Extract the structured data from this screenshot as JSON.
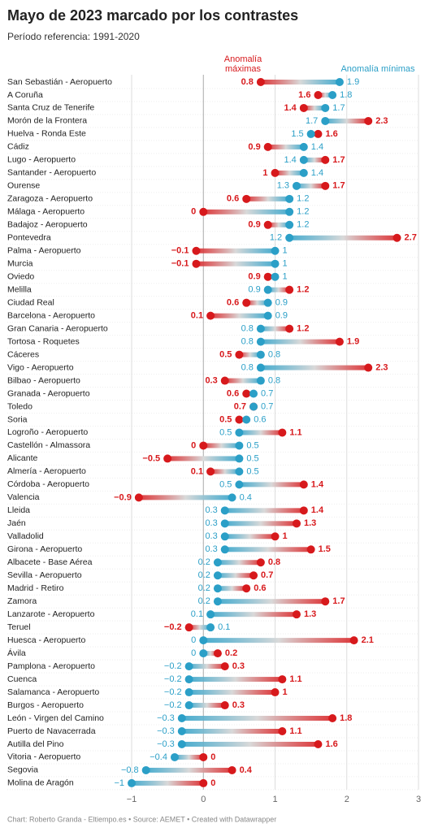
{
  "chart_data": {
    "type": "dumbbell",
    "title": "Mayo de 2023 marcado por los contrastes",
    "subtitle": "Período referencia: 1991-2020",
    "footer": "Chart: Roberto Granda - Eltiempo.es • Source: AEMET • Created with Datawrapper",
    "categories": [
      "San Sebastián - Aeropuerto",
      "A Coruña",
      "Santa Cruz de Tenerife",
      "Morón de la Frontera",
      "Huelva - Ronda Este",
      "Cádiz",
      "Lugo - Aeropuerto",
      "Santander - Aeropuerto",
      "Ourense",
      "Zaragoza - Aeropuerto",
      "Málaga - Aeropuerto",
      "Badajoz - Aeropuerto",
      "Pontevedra",
      "Palma - Aeropuerto",
      "Murcia",
      "Oviedo",
      "Melilla",
      "Ciudad Real",
      "Barcelona - Aeropuerto",
      "Gran Canaria - Aeropuerto",
      "Tortosa - Roquetes",
      "Cáceres",
      "Vigo - Aeropuerto",
      "Bilbao - Aeropuerto",
      "Granada - Aeropuerto",
      "Toledo",
      "Soria",
      "Logroño - Aeropuerto",
      "Castellón - Almassora",
      "Alicante",
      "Almería - Aeropuerto",
      "Córdoba - Aeropuerto",
      "Valencia",
      "Lleida",
      "Jaén",
      "Valladolid",
      "Girona - Aeropuerto",
      "Albacete - Base Aérea",
      "Sevilla - Aeropuerto",
      "Madrid - Retiro",
      "Zamora",
      "Lanzarote - Aeropuerto",
      "Teruel",
      "Huesca - Aeropuerto",
      "Ávila",
      "Pamplona - Aeropuerto",
      "Cuenca",
      "Salamanca - Aeropuerto",
      "Burgos - Aeropuerto",
      "León - Virgen del Camino",
      "Puerto de Navacerrada",
      "Autilla del Pino",
      "Vitoria - Aeropuerto",
      "Segovia",
      "Molina de Aragón"
    ],
    "series": [
      {
        "name": "Anomalía máximas",
        "color": "#d7191c",
        "values": [
          0.8,
          1.6,
          1.4,
          2.3,
          1.6,
          0.9,
          1.7,
          1,
          1.7,
          0.6,
          0,
          0.9,
          2.7,
          -0.1,
          -0.1,
          0.9,
          1.2,
          0.6,
          0.1,
          1.2,
          1.9,
          0.5,
          2.3,
          0.3,
          0.6,
          0.7,
          0.5,
          1.1,
          0,
          -0.5,
          0.1,
          1.4,
          -0.9,
          1.4,
          1.3,
          1,
          1.5,
          0.8,
          0.7,
          0.6,
          1.7,
          1.3,
          -0.2,
          2.1,
          0.2,
          0.3,
          1.1,
          1,
          0.3,
          1.8,
          1.1,
          1.6,
          0,
          0.4,
          0
        ],
        "value_labels": [
          "0.8",
          "1.6",
          "1.4",
          "2.3",
          "1.6",
          "0.9",
          "1.7",
          "1",
          "1.7",
          "0.6",
          "0",
          "0.9",
          "2.7",
          "−0.1",
          "−0.1",
          "0.9",
          "1.2",
          "0.6",
          "0.1",
          "1.2",
          "1.9",
          "0.5",
          "2.3",
          "0.3",
          "0.6",
          "0.7",
          "0.5",
          "1.1",
          "0",
          "−0.5",
          "0.1",
          "1.4",
          "−0.9",
          "1.4",
          "1.3",
          "1",
          "1.5",
          "0.8",
          "0.7",
          "0.6",
          "1.7",
          "1.3",
          "−0.2",
          "2.1",
          "0.2",
          "0.3",
          "1.1",
          "1",
          "0.3",
          "1.8",
          "1.1",
          "1.6",
          "0",
          "0.4",
          "0"
        ]
      },
      {
        "name": "Anomalía mínimas",
        "color": "#2b9fc7",
        "values": [
          1.9,
          1.8,
          1.7,
          1.7,
          1.5,
          1.4,
          1.4,
          1.4,
          1.3,
          1.2,
          1.2,
          1.2,
          1.2,
          1,
          1,
          1,
          0.9,
          0.9,
          0.9,
          0.8,
          0.8,
          0.8,
          0.8,
          0.8,
          0.7,
          0.7,
          0.6,
          0.5,
          0.5,
          0.5,
          0.5,
          0.5,
          0.4,
          0.3,
          0.3,
          0.3,
          0.3,
          0.2,
          0.2,
          0.2,
          0.2,
          0.1,
          0.1,
          0,
          0,
          -0.2,
          -0.2,
          -0.2,
          -0.2,
          -0.3,
          -0.3,
          -0.3,
          -0.4,
          -0.8,
          -1
        ],
        "value_labels": [
          "1.9",
          "1.8",
          "1.7",
          "1.7",
          "1.5",
          "1.4",
          "1.4",
          "1.4",
          "1.3",
          "1.2",
          "1.2",
          "1.2",
          "1.2",
          "1",
          "1",
          "1",
          "0.9",
          "0.9",
          "0.9",
          "0.8",
          "0.8",
          "0.8",
          "0.8",
          "0.8",
          "0.7",
          "0.7",
          "0.6",
          "0.5",
          "0.5",
          "0.5",
          "0.5",
          "0.5",
          "0.4",
          "0.3",
          "0.3",
          "0.3",
          "0.3",
          "0.2",
          "0.2",
          "0.2",
          "0.2",
          "0.1",
          "0.1",
          "0",
          "0",
          "−0.2",
          "−0.2",
          "−0.2",
          "−0.2",
          "−0.3",
          "−0.3",
          "−0.3",
          "−0.4",
          "−0.8",
          "−1"
        ]
      }
    ],
    "xlim": [
      -1.1,
      3
    ],
    "xticks": [
      {
        "value": -1,
        "label": "−1"
      },
      0,
      1,
      2,
      3
    ],
    "grid": true
  }
}
